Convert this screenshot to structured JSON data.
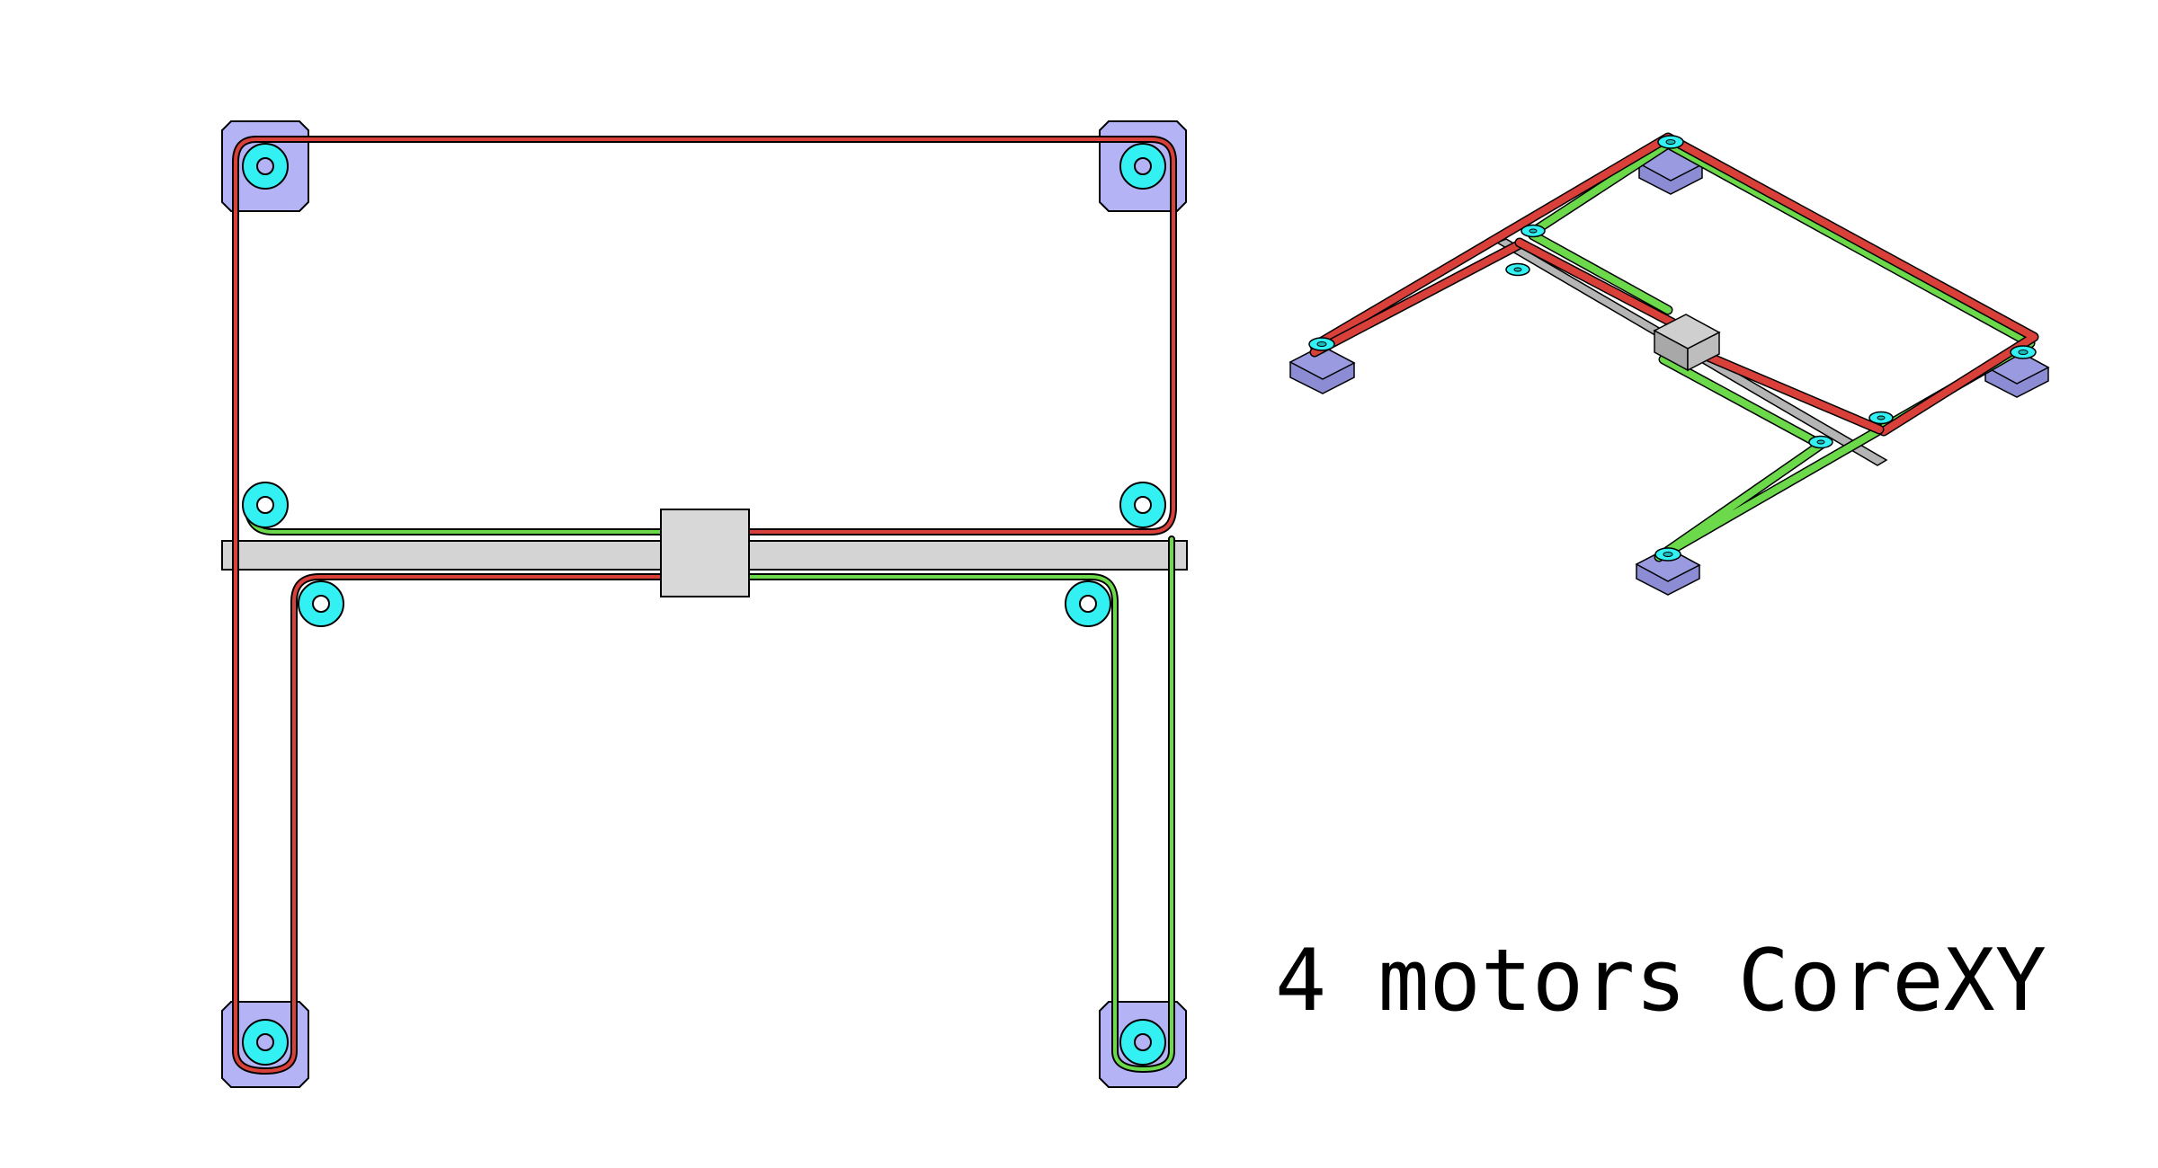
{
  "caption": "4 motors CoreXY",
  "colors": {
    "background": "#ffffff",
    "motor_fill": "#b3b3f5",
    "pulley_fill": "#33f0f2",
    "belt_red": "#d9403a",
    "belt_green": "#6cd94a",
    "gantry_fill": "#d4d4d4",
    "carriage_fill": "#d8d8d8",
    "outline": "#000000"
  },
  "views": {
    "top_view": {
      "motors": 4,
      "idler_pulleys": 4,
      "belts": [
        "red",
        "green"
      ]
    },
    "isometric_view": {
      "motors": 4,
      "idler_pulleys": 4,
      "belts": [
        "red",
        "green"
      ]
    }
  }
}
